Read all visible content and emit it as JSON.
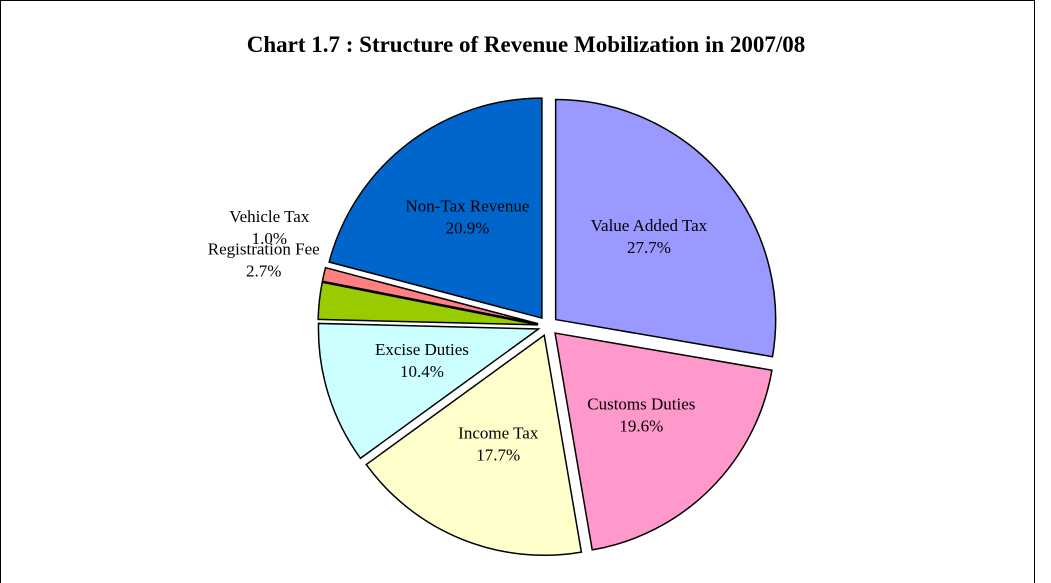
{
  "chart_data": {
    "type": "pie",
    "title": "Chart 1.7 : Structure of Revenue Mobilization in 2007/08",
    "categories": [
      "Value Added Tax",
      "Customs Duties",
      "Income Tax",
      "Excise Duties",
      "Registration Fee",
      "Vehicle Tax",
      "Non-Tax Revenue"
    ],
    "values": [
      27.7,
      19.6,
      17.7,
      10.4,
      2.7,
      1.0,
      20.9
    ],
    "value_labels": [
      "27.7%",
      "19.6%",
      "17.7%",
      "10.4%",
      "2.7%",
      "1.0%",
      "20.9%"
    ],
    "colors": [
      "#9999ff",
      "#ff99cc",
      "#ffffcc",
      "#ccffff",
      "#99cc00",
      "#ff8080",
      "#0066cc"
    ]
  }
}
